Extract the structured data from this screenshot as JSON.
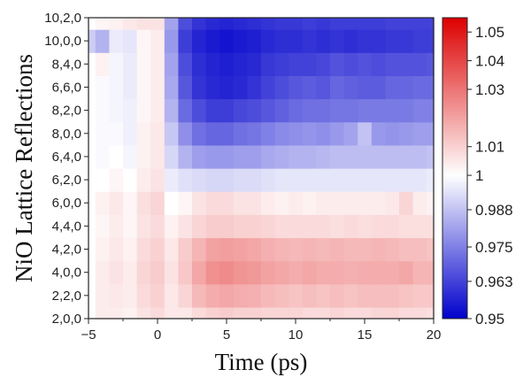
{
  "chart_data": {
    "type": "heatmap",
    "xlabel": "Time (ps)",
    "ylabel": "NiO Lattice Reflections",
    "xlim": [
      -5,
      20
    ],
    "x_ticks": [
      -5,
      0,
      5,
      10,
      15,
      20
    ],
    "y_categories": [
      "2,0,0",
      "2,2,0",
      "4,0,0",
      "4,2,0",
      "4,4,0",
      "6,0,0",
      "6,2,0",
      "6,4,0",
      "8,0,0",
      "8,2,0",
      "6,6,0",
      "8,4,0",
      "10,0,0",
      "10,2,0"
    ],
    "x": [
      -5,
      -4,
      -3,
      -2,
      -1,
      0,
      1,
      2,
      3,
      4,
      5,
      6,
      7,
      8,
      9,
      10,
      11,
      12,
      13,
      14,
      15,
      16,
      17,
      18,
      19,
      20
    ],
    "z": [
      [
        1.0,
        1.004,
        1.004,
        1.003,
        1.006,
        1.008,
        1.005,
        1.005,
        1.008,
        1.01,
        1.011,
        1.01,
        1.01,
        1.009,
        1.009,
        1.009,
        1.008,
        1.008,
        1.009,
        1.008,
        1.008,
        1.009,
        1.009,
        1.008,
        1.008,
        1.007
      ],
      [
        1.0,
        1.004,
        1.005,
        1.004,
        1.008,
        1.01,
        1.005,
        1.009,
        1.015,
        1.018,
        1.019,
        1.018,
        1.017,
        1.015,
        1.014,
        1.013,
        1.014,
        1.013,
        1.014,
        1.013,
        1.014,
        1.014,
        1.014,
        1.013,
        1.012,
        1.012
      ],
      [
        1.0,
        1.004,
        1.006,
        1.004,
        1.009,
        1.011,
        1.006,
        1.012,
        1.019,
        1.024,
        1.025,
        1.023,
        1.022,
        1.02,
        1.019,
        1.018,
        1.019,
        1.018,
        1.018,
        1.017,
        1.018,
        1.018,
        1.018,
        1.019,
        1.016,
        1.016
      ],
      [
        1.0,
        1.003,
        1.005,
        1.003,
        1.008,
        1.01,
        1.005,
        1.011,
        1.016,
        1.02,
        1.021,
        1.02,
        1.019,
        1.017,
        1.016,
        1.015,
        1.016,
        1.015,
        1.016,
        1.015,
        1.015,
        1.016,
        1.015,
        1.014,
        1.014,
        1.013
      ],
      [
        1.0,
        1.002,
        1.004,
        1.002,
        1.006,
        1.008,
        1.003,
        1.006,
        1.009,
        1.011,
        1.011,
        1.01,
        1.01,
        1.009,
        1.008,
        1.008,
        1.008,
        1.008,
        1.007,
        1.008,
        1.007,
        1.008,
        1.008,
        1.007,
        1.007,
        1.007
      ],
      [
        1.0,
        1.003,
        1.005,
        1.002,
        1.007,
        1.009,
        1.0,
        1.002,
        1.006,
        1.008,
        1.008,
        1.006,
        1.006,
        1.004,
        1.003,
        1.004,
        1.003,
        1.004,
        1.004,
        1.004,
        1.004,
        1.004,
        1.005,
        1.009,
        1.004,
        1.003
      ],
      [
        1.0,
        1.0,
        1.002,
        1.0,
        1.004,
        1.006,
        0.996,
        0.994,
        0.993,
        0.992,
        0.992,
        0.993,
        0.993,
        0.994,
        0.995,
        0.995,
        0.995,
        0.995,
        0.995,
        0.995,
        0.995,
        0.995,
        0.995,
        0.995,
        0.995,
        0.996
      ],
      [
        1.0,
        0.999,
        1.0,
        0.998,
        1.003,
        1.005,
        0.992,
        0.985,
        0.981,
        0.98,
        0.98,
        0.981,
        0.981,
        0.983,
        0.984,
        0.985,
        0.985,
        0.986,
        0.987,
        0.987,
        0.987,
        0.987,
        0.987,
        0.987,
        0.987,
        0.988
      ],
      [
        1.0,
        0.999,
        0.999,
        0.997,
        1.003,
        1.005,
        0.989,
        0.978,
        0.972,
        0.97,
        0.97,
        0.972,
        0.973,
        0.975,
        0.977,
        0.978,
        0.979,
        0.978,
        0.98,
        0.982,
        0.988,
        0.98,
        0.979,
        0.98,
        0.981,
        0.981
      ],
      [
        1.0,
        0.999,
        0.998,
        0.997,
        1.002,
        1.004,
        0.985,
        0.971,
        0.965,
        0.962,
        0.962,
        0.964,
        0.965,
        0.967,
        0.969,
        0.971,
        0.972,
        0.972,
        0.973,
        0.973,
        0.974,
        0.974,
        0.974,
        0.974,
        0.975,
        0.975
      ],
      [
        1.0,
        0.999,
        0.998,
        0.996,
        1.002,
        1.004,
        0.983,
        0.967,
        0.96,
        0.958,
        0.957,
        0.958,
        0.96,
        0.963,
        0.965,
        0.967,
        0.968,
        0.967,
        0.97,
        0.969,
        0.968,
        0.968,
        0.97,
        0.97,
        0.971,
        0.971
      ],
      [
        1.0,
        1.003,
        0.998,
        0.996,
        1.002,
        1.004,
        0.982,
        0.965,
        0.959,
        0.957,
        0.956,
        0.957,
        0.958,
        0.961,
        0.962,
        0.963,
        0.963,
        0.964,
        0.966,
        0.965,
        0.966,
        0.965,
        0.966,
        0.966,
        0.966,
        0.967
      ],
      [
        0.99,
        0.985,
        0.996,
        0.995,
        1.002,
        1.004,
        0.98,
        0.962,
        0.957,
        0.955,
        0.954,
        0.955,
        0.956,
        0.958,
        0.959,
        0.959,
        0.96,
        0.959,
        0.96,
        0.959,
        0.96,
        0.96,
        0.961,
        0.961,
        0.962,
        0.962
      ],
      [
        1.0,
        1.002,
        1.003,
        1.005,
        1.006,
        1.006,
        0.982,
        0.965,
        0.96,
        0.958,
        0.957,
        0.958,
        0.959,
        0.96,
        0.961,
        0.961,
        0.962,
        0.961,
        0.962,
        0.962,
        0.962,
        0.962,
        0.963,
        0.963,
        0.963,
        0.963
      ]
    ],
    "colorbar": {
      "min": 0.95,
      "max": 1.055,
      "tick_values": [
        0.95,
        0.963,
        0.975,
        0.988,
        1,
        1.01,
        1.03,
        1.04,
        1.05
      ],
      "tick_labels": [
        "0.95",
        "0.963",
        "0.975",
        "0.988",
        "1",
        "1.01",
        "1.03",
        "1.04",
        "1.05"
      ],
      "colors": [
        "#0000cc",
        "#ffffff",
        "#dd0000"
      ]
    }
  }
}
